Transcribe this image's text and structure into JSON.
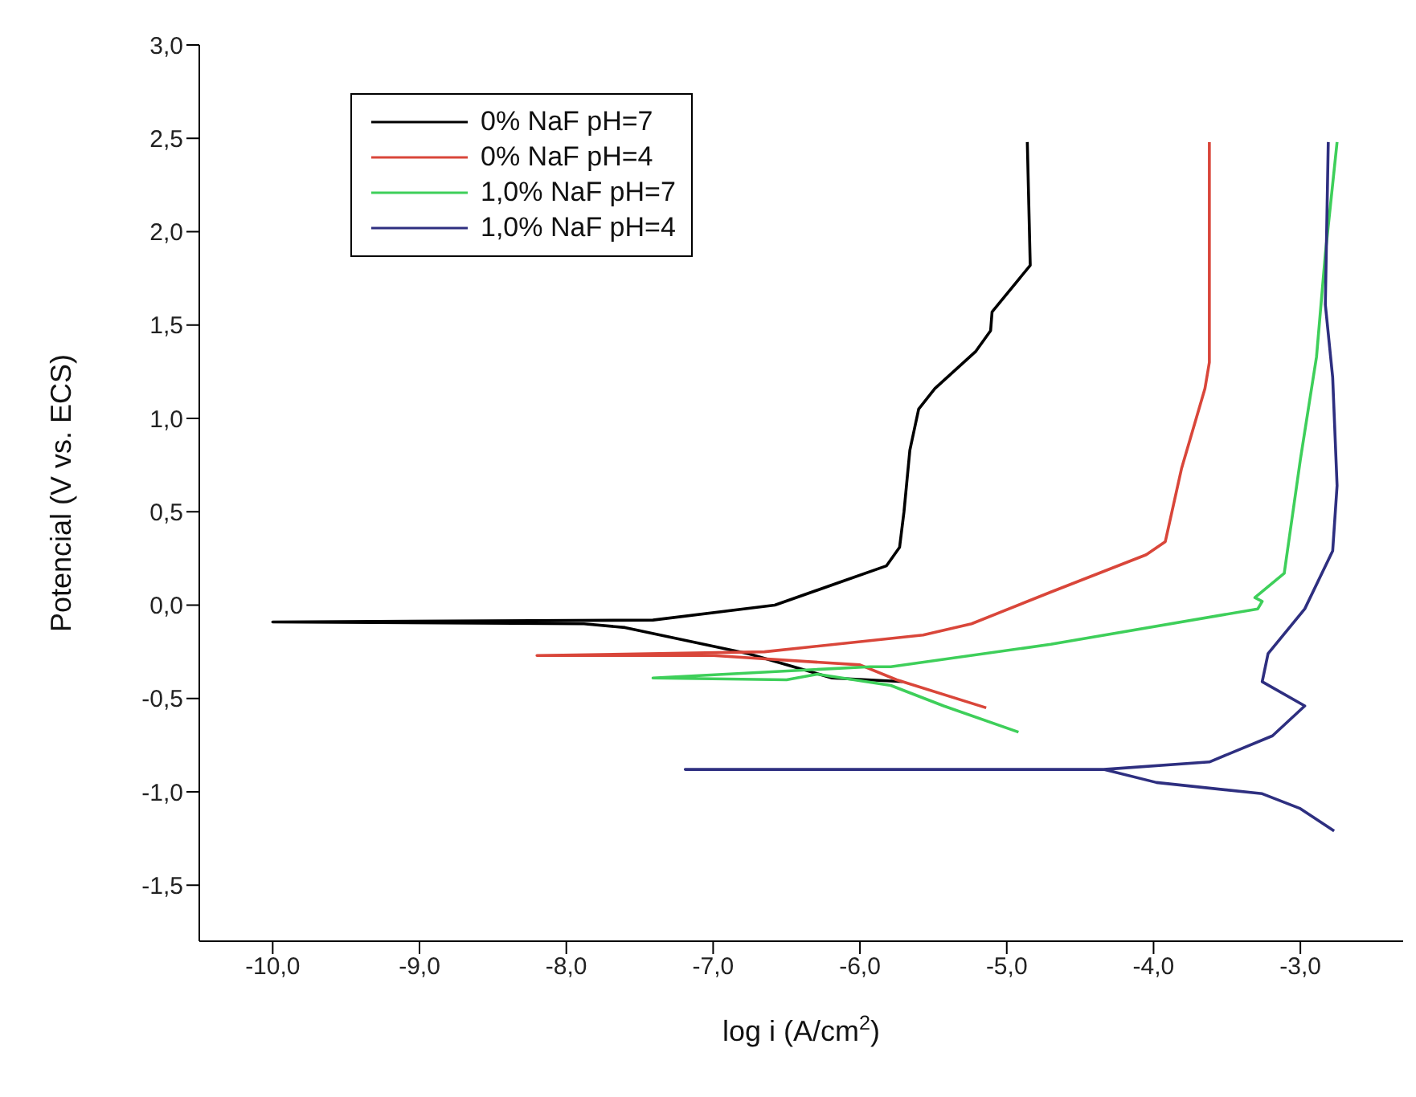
{
  "chart_data": {
    "type": "line",
    "xlabel": "log i (A/cm$^{2}$)",
    "ylabel": "Potencial (V vs. ECS)",
    "xlim": [
      -10.5,
      -2.3
    ],
    "ylim": [
      -1.8,
      3.0
    ],
    "xticks": [
      {
        "value": -10,
        "label": "-10,0"
      },
      {
        "value": -9,
        "label": "-9,0"
      },
      {
        "value": -8,
        "label": "-8,0"
      },
      {
        "value": -7,
        "label": "-7,0"
      },
      {
        "value": -6,
        "label": "-6,0"
      },
      {
        "value": -5,
        "label": "-5,0"
      },
      {
        "value": -4,
        "label": "-4,0"
      },
      {
        "value": -3,
        "label": "-3,0"
      }
    ],
    "yticks": [
      {
        "value": -1.5,
        "label": "-1,5"
      },
      {
        "value": -1,
        "label": "-1,0"
      },
      {
        "value": -0.5,
        "label": "-0,5"
      },
      {
        "value": 0,
        "label": "0,0"
      },
      {
        "value": 0.5,
        "label": "0,5"
      },
      {
        "value": 1,
        "label": "1,0"
      },
      {
        "value": 1.5,
        "label": "1,5"
      },
      {
        "value": 2,
        "label": "2,0"
      },
      {
        "value": 2.5,
        "label": "2,5"
      },
      {
        "value": 3,
        "label": "3,0"
      }
    ],
    "grid": false,
    "legend": "top left",
    "marker": "none",
    "line_style": "solid",
    "series": [
      {
        "name": "0% NaF pH=7",
        "color": "#000000",
        "x": [
          -5.71,
          -6.19,
          -6.76,
          -7.6,
          -7.88,
          -10.0,
          -7.41,
          -6.58,
          -6.11,
          -5.82,
          -5.73,
          -5.7,
          -5.66,
          -5.6,
          -5.49,
          -5.21,
          -5.11,
          -5.1,
          -4.84,
          -4.86
        ],
        "values": [
          -0.41,
          -0.39,
          -0.26,
          -0.12,
          -0.1,
          -0.09,
          -0.08,
          0.0,
          0.13,
          0.21,
          0.31,
          0.5,
          0.83,
          1.05,
          1.16,
          1.36,
          1.47,
          1.57,
          1.82,
          2.48
        ]
      },
      {
        "name": "0% NaF pH=4",
        "color": "#d9463a",
        "x": [
          -5.14,
          -5.75,
          -6.0,
          -7.0,
          -8.2,
          -6.65,
          -5.57,
          -5.24,
          -4.7,
          -4.05,
          -3.92,
          -3.81,
          -3.65,
          -3.62,
          -3.62
        ],
        "values": [
          -0.55,
          -0.4,
          -0.32,
          -0.27,
          -0.27,
          -0.25,
          -0.16,
          -0.1,
          0.07,
          0.27,
          0.34,
          0.73,
          1.16,
          1.3,
          2.48
        ]
      },
      {
        "name": "1,0% NaF pH=7",
        "color": "#3ecf5a",
        "x": [
          -4.92,
          -5.43,
          -5.79,
          -6.29,
          -6.5,
          -7.41,
          -5.93,
          -5.79,
          -4.7,
          -3.29,
          -3.26,
          -3.31,
          -3.11,
          -3.0,
          -2.89,
          -2.83,
          -2.75
        ],
        "values": [
          -0.68,
          -0.54,
          -0.43,
          -0.37,
          -0.4,
          -0.39,
          -0.33,
          -0.33,
          -0.21,
          -0.02,
          0.02,
          0.04,
          0.17,
          0.78,
          1.33,
          1.88,
          2.48
        ]
      },
      {
        "name": "1,0% NaF pH=4",
        "color": "#2e2f80",
        "x": [
          -2.77,
          -3.0,
          -3.26,
          -3.98,
          -4.34,
          -5.79,
          -7.19,
          -4.34,
          -3.62,
          -3.19,
          -2.97,
          -3.26,
          -3.22,
          -2.97,
          -2.78,
          -2.75,
          -2.78,
          -2.83,
          -2.81
        ],
        "values": [
          -1.21,
          -1.09,
          -1.01,
          -0.95,
          -0.88,
          -0.88,
          -0.88,
          -0.88,
          -0.84,
          -0.7,
          -0.54,
          -0.41,
          -0.26,
          -0.02,
          0.29,
          0.64,
          1.22,
          1.61,
          2.48
        ]
      }
    ]
  }
}
